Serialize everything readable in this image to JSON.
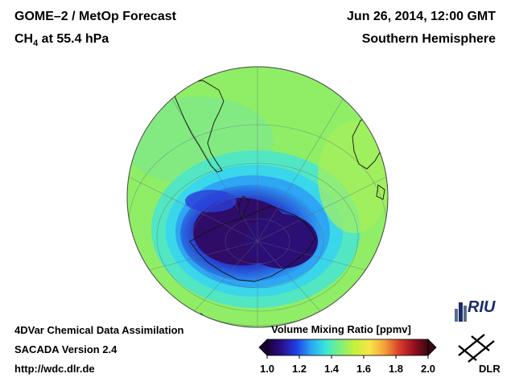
{
  "header": {
    "product": "GOME–2 / MetOp Forecast",
    "species_prefix": "CH",
    "species_subscript": "4",
    "species_suffix": " at 55.4 hPa",
    "datetime": "Jun 26, 2014, 12:00 GMT",
    "region": "Southern Hemisphere"
  },
  "footer": {
    "line1": "4DVar Chemical Data Assimilation",
    "line2": "SACADA Version 2.4",
    "line3": "http://wdc.dlr.de"
  },
  "colorbar": {
    "title": "Volume Mixing Ratio [ppmv]",
    "min": 1.0,
    "max": 2.0,
    "ticks": [
      "1.0",
      "1.2",
      "1.4",
      "1.6",
      "1.8",
      "2.0"
    ],
    "tick_values": [
      1.0,
      1.2,
      1.4,
      1.6,
      1.8,
      2.0
    ],
    "stops": [
      "#1a0033",
      "#2a0f8a",
      "#1f3fe6",
      "#2aa7f5",
      "#38e8d8",
      "#7ff07a",
      "#c6f03c",
      "#f5e64a",
      "#f5a33a",
      "#d9402a",
      "#9a1020",
      "#3a0810"
    ]
  },
  "map_field": {
    "background_level": 1.47,
    "low_core_level": 1.03,
    "low_ring_level": 1.2,
    "mid_ring_level": 1.33
  },
  "logos": {
    "riu": "RIU",
    "dlr": "DLR"
  }
}
